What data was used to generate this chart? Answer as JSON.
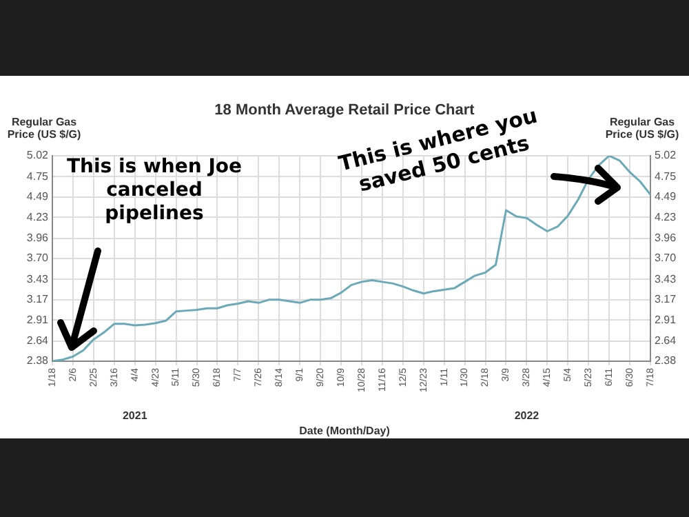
{
  "chart_data": {
    "type": "line",
    "title": "18 Month Average Retail Price Chart",
    "xlabel": "Date (Month/Day)",
    "ylabel": "Regular Gas Price (US $/G)",
    "y2label": "Regular Gas Price (US $/G)",
    "categories": [
      "1/18",
      null,
      "2/6",
      null,
      "2/25",
      null,
      "3/16",
      null,
      "4/4",
      null,
      "4/23",
      null,
      "5/11",
      null,
      "5/30",
      null,
      "6/18",
      null,
      "7/7",
      null,
      "7/26",
      null,
      "8/14",
      null,
      "9/1",
      null,
      "9/20",
      null,
      "10/9",
      null,
      "10/28",
      null,
      "11/16",
      null,
      "12/5",
      null,
      "12/23",
      null,
      "1/11",
      null,
      "1/30",
      null,
      "2/18",
      null,
      "3/9",
      null,
      "3/28",
      null,
      "4/15",
      null,
      "5/4",
      null,
      "5/23",
      null,
      "6/11",
      null,
      "6/30",
      null,
      "7/18"
    ],
    "series": [
      {
        "color": "#6aa9b8",
        "values": [
          2.38,
          2.4,
          2.44,
          2.52,
          2.66,
          2.75,
          2.86,
          2.86,
          2.84,
          2.85,
          2.87,
          2.9,
          3.02,
          3.03,
          3.04,
          3.06,
          3.06,
          3.1,
          3.12,
          3.15,
          3.13,
          3.17,
          3.17,
          3.15,
          3.13,
          3.17,
          3.17,
          3.19,
          3.26,
          3.36,
          3.4,
          3.42,
          3.4,
          3.38,
          3.34,
          3.29,
          3.25,
          3.28,
          3.3,
          3.32,
          3.4,
          3.48,
          3.52,
          3.62,
          4.32,
          4.24,
          4.22,
          4.13,
          4.05,
          4.11,
          4.25,
          4.46,
          4.72,
          4.9,
          5.02,
          4.96,
          4.81,
          4.69,
          4.52
        ]
      }
    ],
    "ylim": [
      2.38,
      5.02
    ],
    "yticks": [
      2.38,
      2.64,
      2.91,
      3.17,
      3.43,
      {
        "value": 3.7,
        "label": "3.70"
      },
      3.96,
      4.23,
      4.49,
      4.75,
      5.02
    ],
    "y2lim": [
      2.38,
      5.02
    ],
    "y2ticks": [
      2.38,
      2.64,
      2.91,
      3.17,
      3.43,
      {
        "value": 3.7,
        "label": "3.70"
      },
      3.96,
      4.23,
      4.49,
      4.75,
      5.02
    ],
    "grid": true,
    "marker": "none",
    "line_style": "solid",
    "annotations": [
      "2021",
      "2022",
      "This is when Joe canceled pipelines",
      "This is where you saved 50 cents"
    ]
  }
}
